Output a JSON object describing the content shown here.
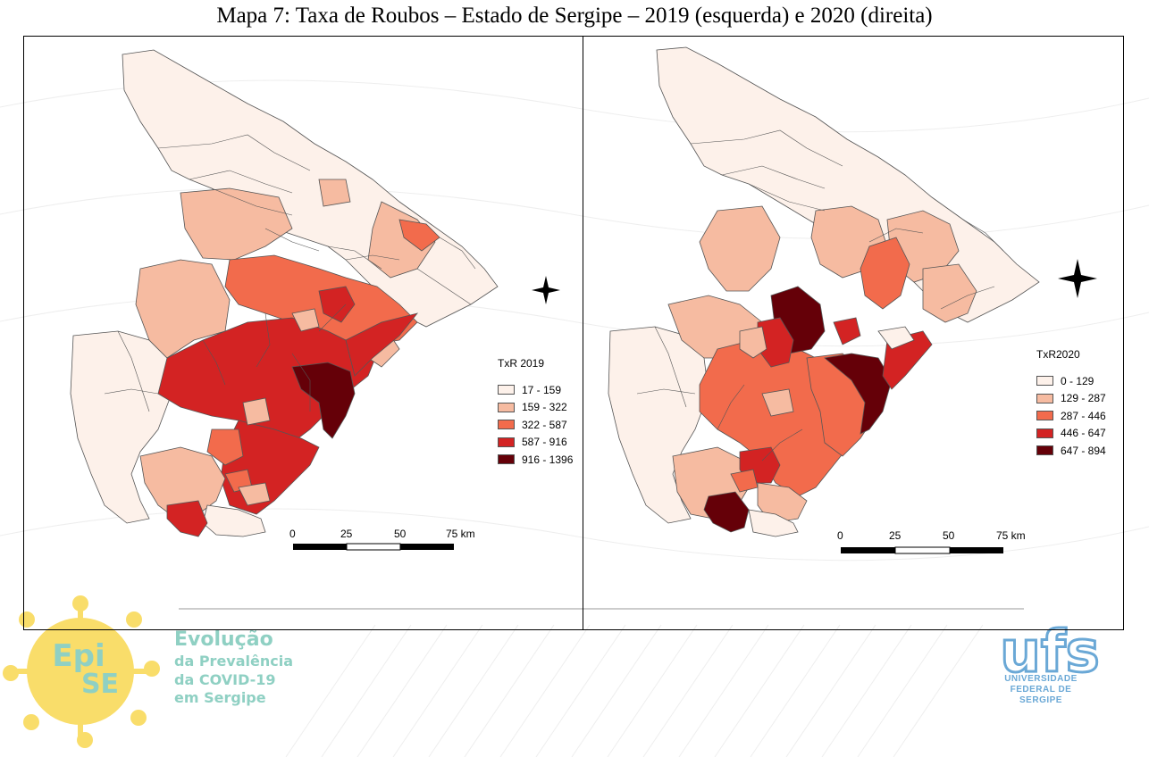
{
  "title": "Mapa 7: Taxa de Roubos – Estado de Sergipe – 2019 (esquerda) e 2020 (direita)",
  "maps": [
    {
      "legend_title": "TxR 2019",
      "classes": [
        {
          "label": "17 - 159",
          "color": "#fdf1ea"
        },
        {
          "label": "159 - 322",
          "color": "#f6bba1"
        },
        {
          "label": "322 - 587",
          "color": "#f26b4c"
        },
        {
          "label": "587 - 916",
          "color": "#d32323"
        },
        {
          "label": "916 - 1396",
          "color": "#650008"
        }
      ],
      "scale_labels": [
        "0",
        "25",
        "50",
        "75 km"
      ]
    },
    {
      "legend_title": "TxR2020",
      "classes": [
        {
          "label": "0 - 129",
          "color": "#fdf1ea"
        },
        {
          "label": "129 - 287",
          "color": "#f6bba1"
        },
        {
          "label": "287 - 446",
          "color": "#f26b4c"
        },
        {
          "label": "446 - 647",
          "color": "#d32323"
        },
        {
          "label": "647 - 894",
          "color": "#650008"
        }
      ],
      "scale_labels": [
        "0",
        "25",
        "50",
        "75 km"
      ]
    }
  ],
  "logo_episse": {
    "mark_line1": "Epi",
    "mark_line2": "SE",
    "line1": "Evolução",
    "line2": "da Prevalência",
    "line3": "da COVID-19",
    "line4": "em Sergipe"
  },
  "logo_ufs": {
    "mark": "ufs",
    "line1": "UNIVERSIDADE",
    "line2": "FEDERAL DE",
    "line3": "SERGIPE"
  }
}
